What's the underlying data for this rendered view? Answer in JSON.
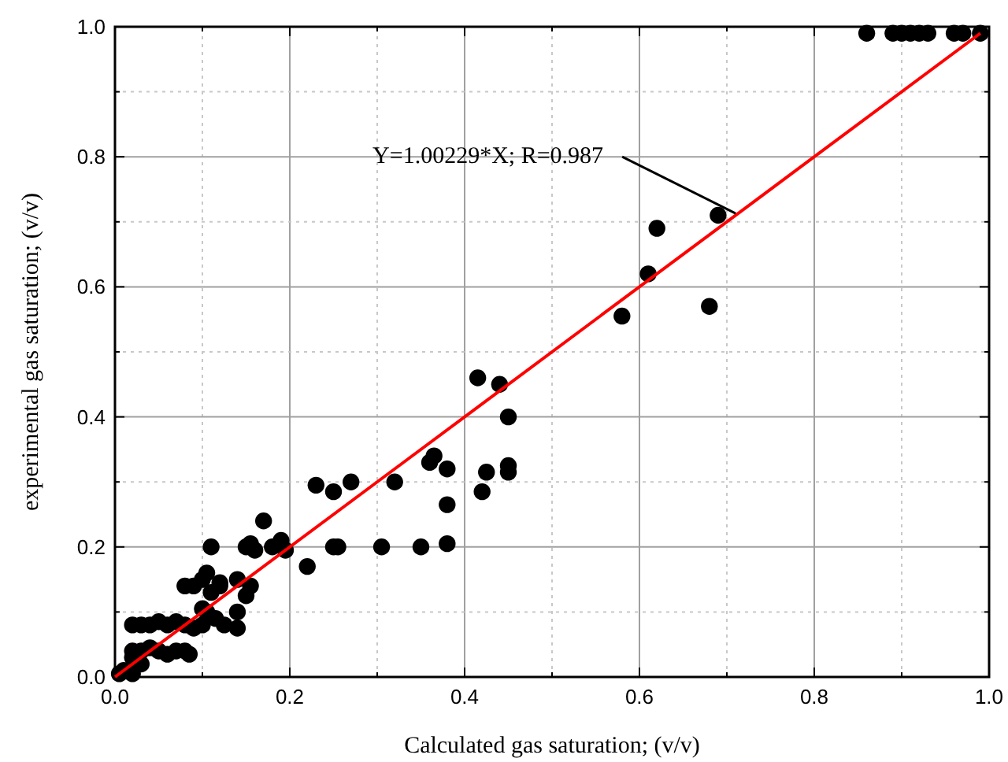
{
  "chart_data": {
    "type": "scatter",
    "xlabel": "Calculated gas saturation; (v/v)",
    "ylabel": "experimental gas saturation; (v/v)",
    "xlim": [
      0,
      1
    ],
    "ylim": [
      0,
      1
    ],
    "xticks": [
      {
        "value": 0,
        "label": "0.0"
      },
      {
        "value": 0.1,
        "label": null
      },
      {
        "value": 0.2,
        "label": "0.2"
      },
      {
        "value": 0.3,
        "label": null
      },
      {
        "value": 0.4,
        "label": "0.4"
      },
      {
        "value": 0.5,
        "label": null
      },
      {
        "value": 0.6,
        "label": "0.6"
      },
      {
        "value": 0.7,
        "label": null
      },
      {
        "value": 0.8,
        "label": "0.8"
      },
      {
        "value": 0.9,
        "label": null
      },
      {
        "value": 1,
        "label": "1.0"
      }
    ],
    "yticks": [
      {
        "value": 0,
        "label": "0.0"
      },
      {
        "value": 0.1,
        "label": null
      },
      {
        "value": 0.2,
        "label": "0.2"
      },
      {
        "value": 0.3,
        "label": null
      },
      {
        "value": 0.4,
        "label": "0.4"
      },
      {
        "value": 0.5,
        "label": null
      },
      {
        "value": 0.6,
        "label": "0.6"
      },
      {
        "value": 0.7,
        "label": null
      },
      {
        "value": 0.8,
        "label": "0.8"
      },
      {
        "value": 0.9,
        "label": null
      },
      {
        "value": 1,
        "label": "1.0"
      }
    ],
    "grid": true,
    "series": [
      {
        "marker": "circle",
        "color": "#000000",
        "x": [
          0.86,
          0.89,
          0.9,
          0.91,
          0.92,
          0.93,
          0.96,
          0.97,
          0.99,
          0.69,
          0.62,
          0.61,
          0.58,
          0.68,
          0.415,
          0.44,
          0.45,
          0.36,
          0.365,
          0.38,
          0.38,
          0.38,
          0.42,
          0.425,
          0.45,
          0.45,
          0.35,
          0.305,
          0.32,
          0.27,
          0.25,
          0.23,
          0.25,
          0.255,
          0.22,
          0.195,
          0.19,
          0.17,
          0.18,
          0.155,
          0.15,
          0.16,
          0.14,
          0.155,
          0.15,
          0.14,
          0.14,
          0.125,
          0.12,
          0.11,
          0.105,
          0.1,
          0.11,
          0.09,
          0.08,
          0.105,
          0.1,
          0.09,
          0.08,
          0.07,
          0.06,
          0.05,
          0.04,
          0.03,
          0.02,
          0.08,
          0.085,
          0.07,
          0.06,
          0.05,
          0.04,
          0.03,
          0.02,
          0.02,
          0.03,
          0.01,
          0.02,
          0.005,
          0.115,
          0.1,
          0.12
        ],
        "values": [
          0.99,
          0.99,
          0.99,
          0.99,
          0.99,
          0.99,
          0.99,
          0.99,
          0.99,
          0.71,
          0.69,
          0.62,
          0.555,
          0.57,
          0.46,
          0.45,
          0.4,
          0.33,
          0.34,
          0.32,
          0.265,
          0.205,
          0.285,
          0.315,
          0.325,
          0.315,
          0.2,
          0.2,
          0.3,
          0.3,
          0.285,
          0.295,
          0.2,
          0.2,
          0.17,
          0.195,
          0.21,
          0.24,
          0.2,
          0.205,
          0.2,
          0.195,
          0.15,
          0.14,
          0.125,
          0.1,
          0.075,
          0.08,
          0.145,
          0.13,
          0.16,
          0.15,
          0.2,
          0.14,
          0.14,
          0.1,
          0.08,
          0.075,
          0.08,
          0.085,
          0.08,
          0.085,
          0.08,
          0.08,
          0.08,
          0.04,
          0.035,
          0.04,
          0.035,
          0.04,
          0.045,
          0.04,
          0.04,
          0.03,
          0.02,
          0.01,
          0.005,
          0.005,
          0.09,
          0.105,
          0.14
        ]
      },
      {
        "type": "line",
        "color": "#ff0000",
        "x": [
          0,
          0.99
        ],
        "values": [
          0,
          0.99
        ]
      }
    ],
    "annotations": [
      {
        "text": "Y=1.00229*X; R=0.987",
        "x": 0.71,
        "y": 0.713
      }
    ]
  }
}
